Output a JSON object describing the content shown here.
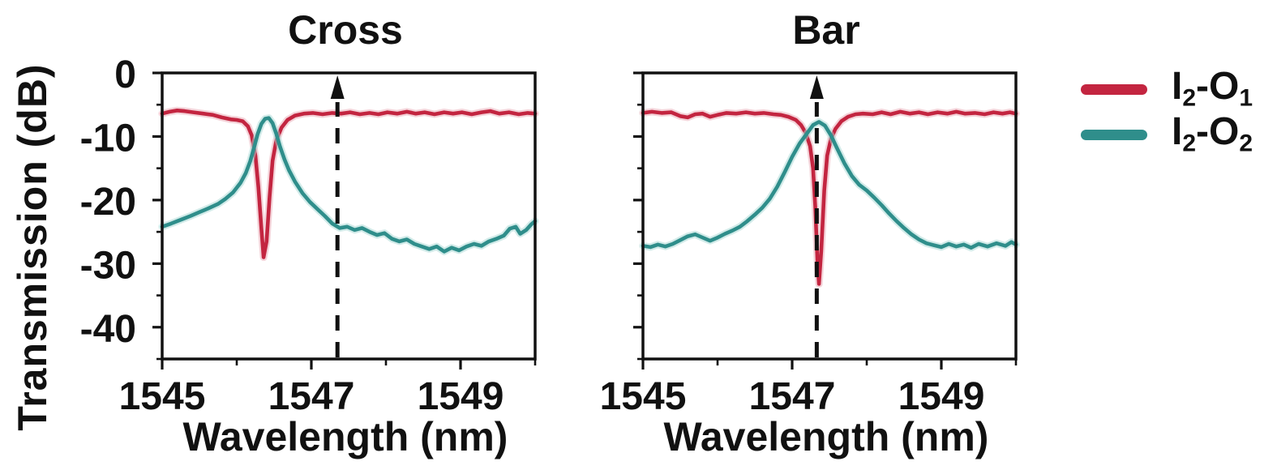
{
  "figure_title": "",
  "legend": {
    "items": [
      {
        "name": "I2-O1",
        "color": "#c32540",
        "halo": "#e9a8b3",
        "pre": "I",
        "sub_in": "2",
        "mid": "-O",
        "sub_out": "1"
      },
      {
        "name": "I2-O2",
        "color": "#2f8e8b",
        "halo": "#a6d7d3",
        "pre": "I",
        "sub_in": "2",
        "mid": "-O",
        "sub_out": "2"
      }
    ]
  },
  "chart_data": [
    {
      "type": "line",
      "title": "Cross",
      "xlabel": "Wavelength (nm)",
      "ylabel": "Transmission (dB)",
      "xlim": [
        1545,
        1550
      ],
      "ylim": [
        -45,
        0
      ],
      "x_ticks_major": [
        1545,
        1547,
        1549
      ],
      "x_ticks_minor": [
        1546,
        1548,
        1550
      ],
      "y_ticks_major": [
        0,
        -10,
        -20,
        -30,
        -40
      ],
      "y_ticks_minor": [
        -5,
        -15,
        -25,
        -35,
        -45
      ],
      "show_y_tick_labels": true,
      "grid": false,
      "annotation": {
        "type": "dashed-arrow-up",
        "x": 1547.35
      },
      "series": [
        {
          "name": "I2-O1",
          "color": "#c32540",
          "halo": "#e9a8b3",
          "width": 4.6,
          "points": [
            [
              1545.0,
              -6.4
            ],
            [
              1545.1,
              -6.1
            ],
            [
              1545.2,
              -5.9
            ],
            [
              1545.3,
              -6.0
            ],
            [
              1545.42,
              -6.2
            ],
            [
              1545.55,
              -6.4
            ],
            [
              1545.68,
              -6.6
            ],
            [
              1545.8,
              -7.0
            ],
            [
              1545.92,
              -7.3
            ],
            [
              1546.0,
              -7.4
            ],
            [
              1546.08,
              -7.6
            ],
            [
              1546.15,
              -8.4
            ],
            [
              1546.2,
              -9.8
            ],
            [
              1546.25,
              -13.0
            ],
            [
              1546.29,
              -18.0
            ],
            [
              1546.33,
              -24.5
            ],
            [
              1546.36,
              -29.0
            ],
            [
              1546.4,
              -26.5
            ],
            [
              1546.44,
              -19.5
            ],
            [
              1546.48,
              -13.8
            ],
            [
              1546.53,
              -10.6
            ],
            [
              1546.6,
              -8.6
            ],
            [
              1546.68,
              -7.4
            ],
            [
              1546.78,
              -6.7
            ],
            [
              1546.9,
              -6.4
            ],
            [
              1547.02,
              -6.3
            ],
            [
              1547.15,
              -6.5
            ],
            [
              1547.28,
              -6.3
            ],
            [
              1547.4,
              -6.4
            ],
            [
              1547.52,
              -6.2
            ],
            [
              1547.65,
              -6.5
            ],
            [
              1547.78,
              -6.3
            ],
            [
              1547.9,
              -6.5
            ],
            [
              1548.02,
              -6.2
            ],
            [
              1548.15,
              -6.4
            ],
            [
              1548.28,
              -6.1
            ],
            [
              1548.4,
              -6.4
            ],
            [
              1548.52,
              -6.2
            ],
            [
              1548.65,
              -6.5
            ],
            [
              1548.78,
              -6.2
            ],
            [
              1548.9,
              -6.4
            ],
            [
              1549.02,
              -6.2
            ],
            [
              1549.15,
              -6.5
            ],
            [
              1549.28,
              -6.2
            ],
            [
              1549.4,
              -6.0
            ],
            [
              1549.52,
              -6.4
            ],
            [
              1549.65,
              -6.2
            ],
            [
              1549.78,
              -6.5
            ],
            [
              1549.9,
              -6.3
            ],
            [
              1550.0,
              -6.4
            ]
          ]
        },
        {
          "name": "I2-O2",
          "color": "#2f8e8b",
          "halo": "#a6d7d3",
          "width": 4.6,
          "points": [
            [
              1545.0,
              -24.2
            ],
            [
              1545.12,
              -23.7
            ],
            [
              1545.25,
              -23.1
            ],
            [
              1545.38,
              -22.5
            ],
            [
              1545.5,
              -21.9
            ],
            [
              1545.62,
              -21.3
            ],
            [
              1545.75,
              -20.6
            ],
            [
              1545.85,
              -19.8
            ],
            [
              1545.95,
              -18.8
            ],
            [
              1546.05,
              -17.3
            ],
            [
              1546.12,
              -15.8
            ],
            [
              1546.18,
              -13.9
            ],
            [
              1546.23,
              -11.8
            ],
            [
              1546.28,
              -9.6
            ],
            [
              1546.33,
              -8.0
            ],
            [
              1546.38,
              -7.2
            ],
            [
              1546.43,
              -7.1
            ],
            [
              1546.48,
              -7.9
            ],
            [
              1546.53,
              -9.6
            ],
            [
              1546.58,
              -11.6
            ],
            [
              1546.64,
              -13.6
            ],
            [
              1546.7,
              -15.3
            ],
            [
              1546.78,
              -17.1
            ],
            [
              1546.88,
              -18.9
            ],
            [
              1546.98,
              -20.3
            ],
            [
              1547.08,
              -21.4
            ],
            [
              1547.18,
              -22.5
            ],
            [
              1547.28,
              -23.7
            ],
            [
              1547.38,
              -24.4
            ],
            [
              1547.48,
              -24.2
            ],
            [
              1547.58,
              -24.7
            ],
            [
              1547.68,
              -24.4
            ],
            [
              1547.78,
              -25.0
            ],
            [
              1547.88,
              -25.5
            ],
            [
              1547.98,
              -25.2
            ],
            [
              1548.08,
              -26.1
            ],
            [
              1548.18,
              -26.5
            ],
            [
              1548.28,
              -26.2
            ],
            [
              1548.38,
              -26.9
            ],
            [
              1548.48,
              -27.3
            ],
            [
              1548.58,
              -27.7
            ],
            [
              1548.68,
              -27.3
            ],
            [
              1548.78,
              -28.1
            ],
            [
              1548.88,
              -27.5
            ],
            [
              1548.98,
              -27.9
            ],
            [
              1549.08,
              -27.3
            ],
            [
              1549.18,
              -26.9
            ],
            [
              1549.28,
              -27.2
            ],
            [
              1549.38,
              -26.5
            ],
            [
              1549.48,
              -26.1
            ],
            [
              1549.58,
              -25.6
            ],
            [
              1549.66,
              -24.5
            ],
            [
              1549.74,
              -24.2
            ],
            [
              1549.8,
              -25.3
            ],
            [
              1549.88,
              -24.7
            ],
            [
              1549.95,
              -23.8
            ],
            [
              1550.0,
              -23.3
            ]
          ]
        }
      ]
    },
    {
      "type": "line",
      "title": "Bar",
      "xlabel": "Wavelength (nm)",
      "ylabel": "Transmission (dB)",
      "xlim": [
        1545,
        1550
      ],
      "ylim": [
        -45,
        0
      ],
      "x_ticks_major": [
        1545,
        1547,
        1549
      ],
      "x_ticks_minor": [
        1546,
        1548,
        1550
      ],
      "y_ticks_major": [
        0,
        -10,
        -20,
        -30,
        -40
      ],
      "y_ticks_minor": [
        -5,
        -15,
        -25,
        -35,
        -45
      ],
      "show_y_tick_labels": false,
      "grid": false,
      "annotation": {
        "type": "dashed-arrow-up",
        "x": 1547.33
      },
      "series": [
        {
          "name": "I2-O1",
          "color": "#c32540",
          "halo": "#e9a8b3",
          "width": 4.6,
          "points": [
            [
              1545.0,
              -6.3
            ],
            [
              1545.12,
              -6.1
            ],
            [
              1545.25,
              -6.3
            ],
            [
              1545.38,
              -6.2
            ],
            [
              1545.5,
              -6.8
            ],
            [
              1545.6,
              -7.0
            ],
            [
              1545.7,
              -6.5
            ],
            [
              1545.8,
              -6.4
            ],
            [
              1545.9,
              -6.9
            ],
            [
              1546.0,
              -6.6
            ],
            [
              1546.12,
              -6.3
            ],
            [
              1546.25,
              -6.4
            ],
            [
              1546.38,
              -6.2
            ],
            [
              1546.5,
              -6.4
            ],
            [
              1546.62,
              -6.3
            ],
            [
              1546.75,
              -6.5
            ],
            [
              1546.85,
              -6.6
            ],
            [
              1546.95,
              -6.9
            ],
            [
              1547.05,
              -7.4
            ],
            [
              1547.12,
              -8.2
            ],
            [
              1547.18,
              -9.4
            ],
            [
              1547.24,
              -11.5
            ],
            [
              1547.28,
              -15.0
            ],
            [
              1547.31,
              -21.0
            ],
            [
              1547.34,
              -30.0
            ],
            [
              1547.36,
              -33.2
            ],
            [
              1547.39,
              -28.0
            ],
            [
              1547.43,
              -18.5
            ],
            [
              1547.47,
              -13.0
            ],
            [
              1547.52,
              -10.4
            ],
            [
              1547.58,
              -8.8
            ],
            [
              1547.66,
              -7.6
            ],
            [
              1547.75,
              -6.9
            ],
            [
              1547.85,
              -6.5
            ],
            [
              1547.95,
              -6.4
            ],
            [
              1548.08,
              -6.5
            ],
            [
              1548.2,
              -6.2
            ],
            [
              1548.32,
              -6.5
            ],
            [
              1548.45,
              -6.1
            ],
            [
              1548.58,
              -6.4
            ],
            [
              1548.7,
              -6.2
            ],
            [
              1548.82,
              -6.5
            ],
            [
              1548.95,
              -6.2
            ],
            [
              1549.08,
              -6.4
            ],
            [
              1549.2,
              -6.1
            ],
            [
              1549.32,
              -6.4
            ],
            [
              1549.45,
              -6.3
            ],
            [
              1549.58,
              -6.5
            ],
            [
              1549.7,
              -6.2
            ],
            [
              1549.82,
              -6.4
            ],
            [
              1549.92,
              -6.2
            ],
            [
              1550.0,
              -6.4
            ]
          ]
        },
        {
          "name": "I2-O2",
          "color": "#2f8e8b",
          "halo": "#a6d7d3",
          "width": 4.6,
          "points": [
            [
              1545.0,
              -27.2
            ],
            [
              1545.1,
              -27.4
            ],
            [
              1545.2,
              -27.0
            ],
            [
              1545.3,
              -27.3
            ],
            [
              1545.4,
              -26.9
            ],
            [
              1545.5,
              -26.3
            ],
            [
              1545.6,
              -25.7
            ],
            [
              1545.7,
              -25.4
            ],
            [
              1545.8,
              -25.9
            ],
            [
              1545.9,
              -26.4
            ],
            [
              1546.0,
              -25.9
            ],
            [
              1546.1,
              -25.3
            ],
            [
              1546.2,
              -24.8
            ],
            [
              1546.3,
              -24.2
            ],
            [
              1546.4,
              -23.3
            ],
            [
              1546.5,
              -22.3
            ],
            [
              1546.6,
              -21.2
            ],
            [
              1546.7,
              -19.8
            ],
            [
              1546.8,
              -17.9
            ],
            [
              1546.9,
              -15.6
            ],
            [
              1547.0,
              -13.2
            ],
            [
              1547.1,
              -11.1
            ],
            [
              1547.2,
              -9.5
            ],
            [
              1547.28,
              -8.2
            ],
            [
              1547.36,
              -7.7
            ],
            [
              1547.44,
              -8.3
            ],
            [
              1547.52,
              -9.8
            ],
            [
              1547.6,
              -11.8
            ],
            [
              1547.7,
              -14.2
            ],
            [
              1547.8,
              -16.2
            ],
            [
              1547.9,
              -17.6
            ],
            [
              1548.0,
              -18.5
            ],
            [
              1548.1,
              -19.6
            ],
            [
              1548.2,
              -20.8
            ],
            [
              1548.3,
              -22.1
            ],
            [
              1548.4,
              -23.3
            ],
            [
              1548.5,
              -24.4
            ],
            [
              1548.6,
              -25.4
            ],
            [
              1548.7,
              -26.2
            ],
            [
              1548.8,
              -26.8
            ],
            [
              1548.9,
              -27.1
            ],
            [
              1549.0,
              -27.4
            ],
            [
              1549.1,
              -26.9
            ],
            [
              1549.2,
              -27.3
            ],
            [
              1549.3,
              -27.0
            ],
            [
              1549.4,
              -27.5
            ],
            [
              1549.5,
              -26.9
            ],
            [
              1549.62,
              -27.3
            ],
            [
              1549.74,
              -26.8
            ],
            [
              1549.86,
              -27.2
            ],
            [
              1549.94,
              -26.6
            ],
            [
              1550.0,
              -27.0
            ]
          ]
        }
      ]
    }
  ]
}
